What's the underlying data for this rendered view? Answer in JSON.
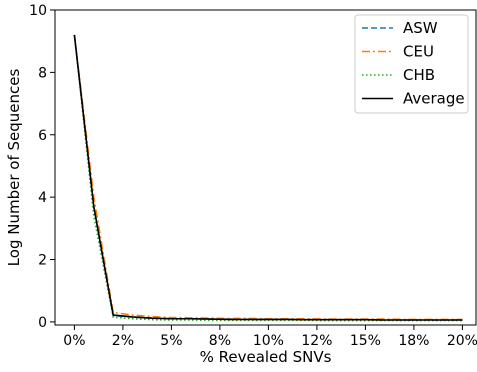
{
  "chart_data": {
    "type": "line",
    "title": "",
    "xlabel": "% Revealed SNVs",
    "ylabel": "Log Number of Sequences",
    "x": [
      0,
      1,
      2,
      3,
      4,
      5,
      6,
      7,
      8,
      9,
      10,
      11,
      12,
      13,
      14,
      15,
      16,
      17,
      18,
      19,
      20
    ],
    "xlim": [
      -1,
      20.7
    ],
    "ylim": [
      -0.1,
      10
    ],
    "xticks": [
      0,
      2.5,
      5,
      7.5,
      10,
      12.5,
      15,
      17.5,
      20
    ],
    "xtick_labels": [
      "0%",
      "2%",
      "5%",
      "8%",
      "10%",
      "12%",
      "15%",
      "18%",
      "20%"
    ],
    "yticks": [
      0,
      2,
      4,
      6,
      8,
      10
    ],
    "ytick_labels": [
      "0",
      "2",
      "4",
      "6",
      "8",
      "10"
    ],
    "grid": false,
    "legend_position": "top-right",
    "series": [
      {
        "name": "ASW",
        "color": "#1f77b4",
        "dash": "dashed",
        "values": [
          9.2,
          3.7,
          0.2,
          0.15,
          0.12,
          0.1,
          0.1,
          0.09,
          0.09,
          0.08,
          0.08,
          0.08,
          0.07,
          0.07,
          0.07,
          0.07,
          0.06,
          0.06,
          0.06,
          0.06,
          0.06
        ]
      },
      {
        "name": "CEU",
        "color": "#ff7f0e",
        "dash": "dashdot",
        "values": [
          9.2,
          4.0,
          0.3,
          0.22,
          0.17,
          0.14,
          0.13,
          0.12,
          0.11,
          0.11,
          0.1,
          0.1,
          0.1,
          0.09,
          0.09,
          0.09,
          0.09,
          0.08,
          0.08,
          0.08,
          0.08
        ]
      },
      {
        "name": "CHB",
        "color": "#2ca02c",
        "dash": "dotted",
        "values": [
          9.2,
          3.4,
          0.15,
          0.1,
          0.07,
          0.06,
          0.06,
          0.05,
          0.05,
          0.05,
          0.05,
          0.05,
          0.05,
          0.04,
          0.04,
          0.04,
          0.04,
          0.04,
          0.04,
          0.04,
          0.04
        ]
      },
      {
        "name": "Average",
        "color": "#000000",
        "dash": "solid",
        "values": [
          9.2,
          3.7,
          0.22,
          0.16,
          0.12,
          0.1,
          0.1,
          0.09,
          0.08,
          0.08,
          0.08,
          0.08,
          0.07,
          0.07,
          0.07,
          0.07,
          0.06,
          0.06,
          0.06,
          0.06,
          0.06
        ]
      }
    ]
  }
}
